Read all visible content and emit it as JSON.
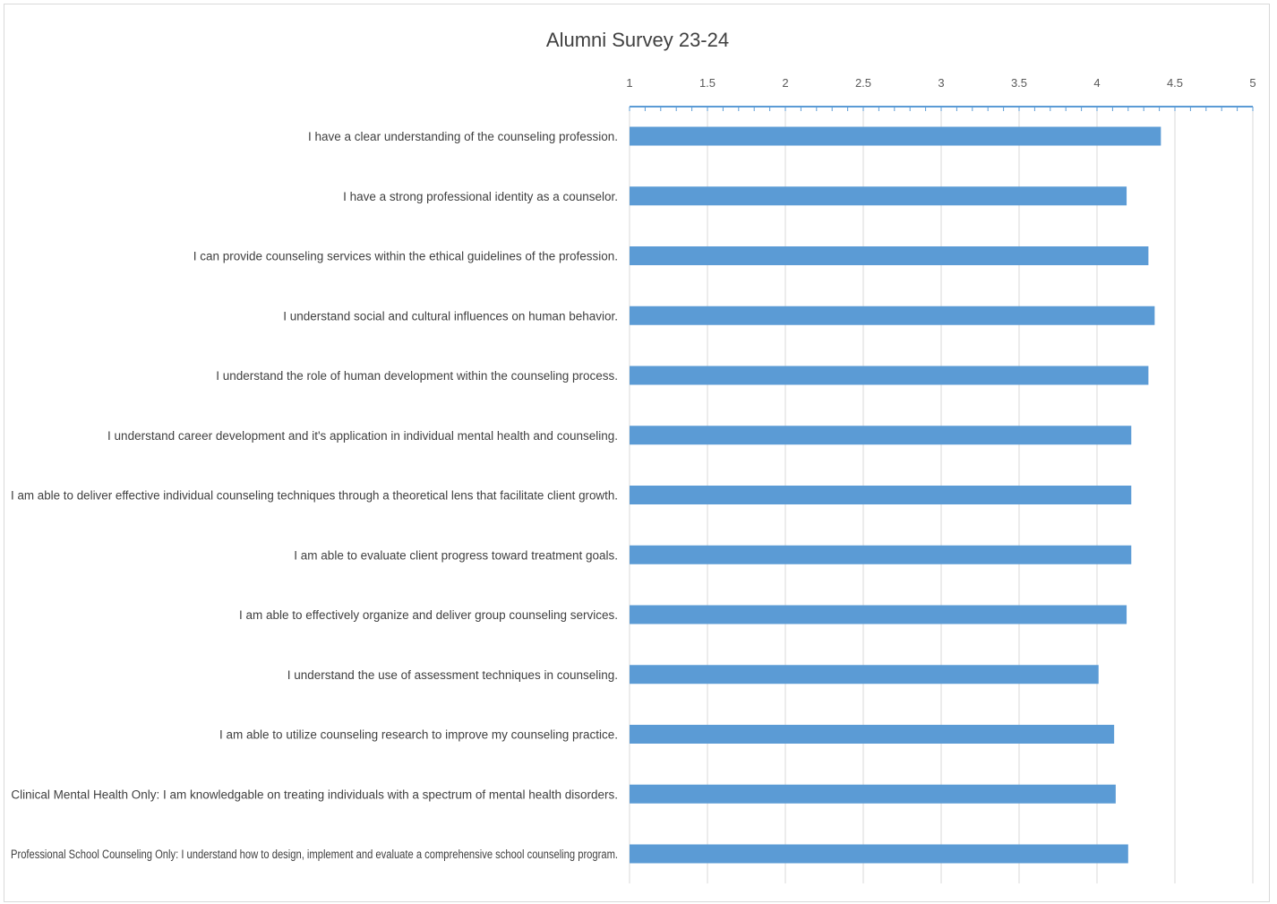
{
  "chart_data": {
    "type": "bar",
    "orientation": "horizontal",
    "title": "Alumni Survey 23-24",
    "xlabel": "",
    "ylabel": "",
    "xlim": [
      1,
      5
    ],
    "x_ticks": [
      "1",
      "1.5",
      "2",
      "2.5",
      "3",
      "3.5",
      "4",
      "4.5",
      "5"
    ],
    "x_axis_position": "top",
    "grid": true,
    "legend": "none",
    "bar_color": "#5b9bd5",
    "categories": [
      "I have a clear understanding of the counseling profession.",
      "I have a strong professional identity as a counselor.",
      "I can provide counseling services within the ethical guidelines of the profession.",
      "I understand social and cultural influences on human behavior.",
      "I understand the role of human development within the counseling process.",
      "I understand career development and it's application in individual mental health and counseling.",
      "I am able to deliver effective individual counseling techniques through a theoretical lens that facilitate client growth.",
      "I am able to evaluate client progress toward treatment goals.",
      "I am able to effectively organize and deliver group counseling services.",
      "I understand the use of assessment techniques in counseling.",
      "I am able to utilize counseling research to improve my counseling practice.",
      "Clinical Mental Health Only: I am knowledgable on treating individuals with a spectrum of mental health disorders.",
      "Professional School Counseling Only: I understand how to design, implement and evaluate a comprehensive school counseling program."
    ],
    "values": [
      4.41,
      4.19,
      4.33,
      4.37,
      4.33,
      4.22,
      4.22,
      4.22,
      4.19,
      4.01,
      4.11,
      4.12,
      4.2
    ]
  }
}
